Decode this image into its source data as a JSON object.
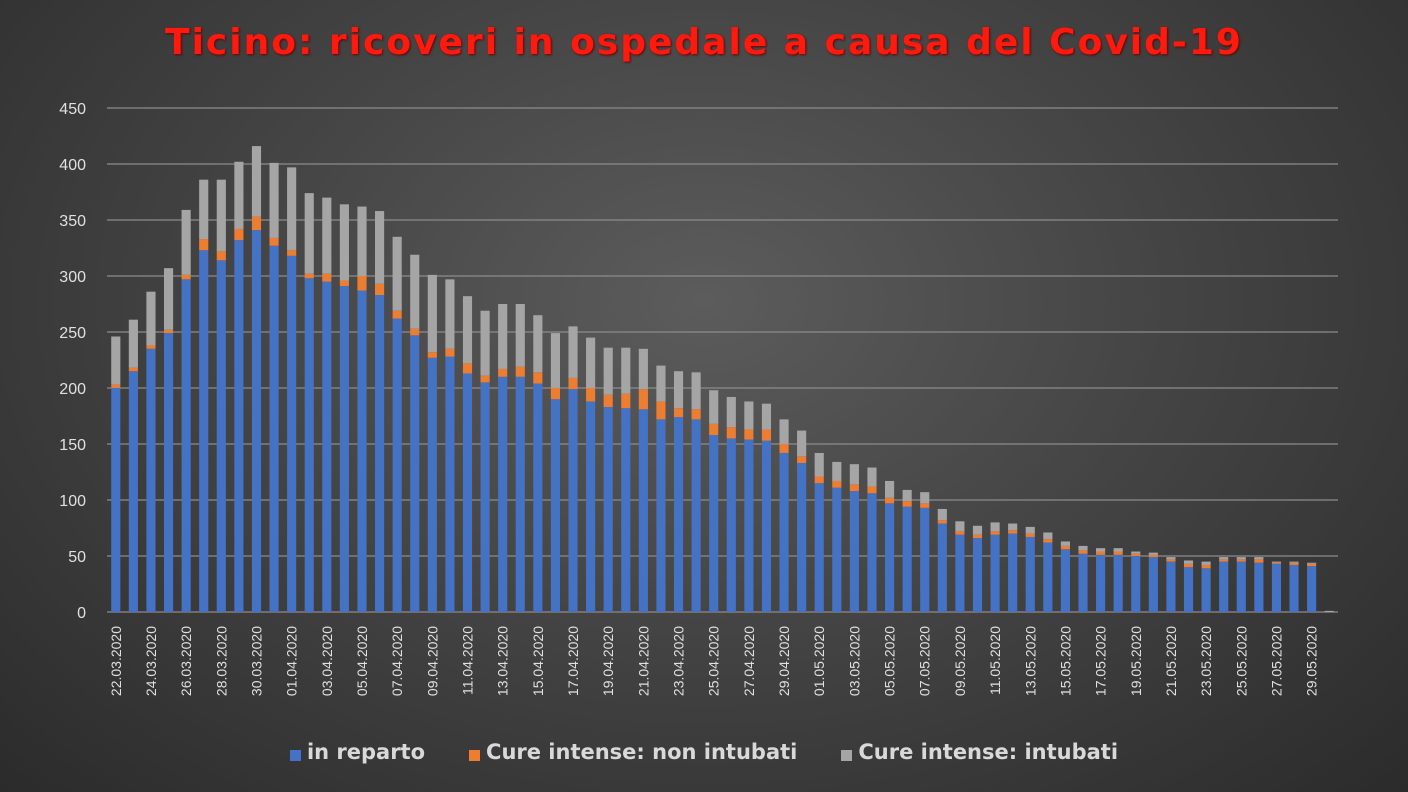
{
  "chart_data": {
    "type": "bar",
    "stacked": true,
    "title": "Ticino: ricoveri in ospedale a causa del Covid-19",
    "xlabel": "",
    "ylabel": "",
    "ylim": [
      0,
      450
    ],
    "yticks": [
      0,
      50,
      100,
      150,
      200,
      250,
      300,
      350,
      400,
      450
    ],
    "grid": true,
    "legend_position": "bottom",
    "categories": [
      "22.03.2020",
      "23.03.2020",
      "24.03.2020",
      "25.03.2020",
      "26.03.2020",
      "27.03.2020",
      "28.03.2020",
      "29.03.2020",
      "30.03.2020",
      "31.03.2020",
      "01.04.2020",
      "02.04.2020",
      "03.04.2020",
      "04.04.2020",
      "05.04.2020",
      "06.04.2020",
      "07.04.2020",
      "08.04.2020",
      "09.04.2020",
      "10.04.2020",
      "11.04.2020",
      "12.04.2020",
      "13.04.2020",
      "14.04.2020",
      "15.04.2020",
      "16.04.2020",
      "17.04.2020",
      "18.04.2020",
      "19.04.2020",
      "20.04.2020",
      "21.04.2020",
      "22.04.2020",
      "23.04.2020",
      "24.04.2020",
      "25.04.2020",
      "26.04.2020",
      "27.04.2020",
      "28.04.2020",
      "29.04.2020",
      "30.04.2020",
      "01.05.2020",
      "02.05.2020",
      "03.05.2020",
      "04.05.2020",
      "05.05.2020",
      "06.05.2020",
      "07.05.2020",
      "08.05.2020",
      "09.05.2020",
      "10.05.2020",
      "11.05.2020",
      "12.05.2020",
      "13.05.2020",
      "14.05.2020",
      "15.05.2020",
      "16.05.2020",
      "17.05.2020",
      "18.05.2020",
      "19.05.2020",
      "20.05.2020",
      "21.05.2020",
      "22.05.2020",
      "23.05.2020",
      "24.05.2020",
      "25.05.2020",
      "26.05.2020",
      "27.05.2020",
      "28.05.2020",
      "29.05.2020",
      "30.05.2020"
    ],
    "tick_labels": [
      "22.03.2020",
      "24.03.2020",
      "26.03.2020",
      "28.03.2020",
      "30.03.2020",
      "01.04.2020",
      "03.04.2020",
      "05.04.2020",
      "07.04.2020",
      "09.04.2020",
      "11.04.2020",
      "13.04.2020",
      "15.04.2020",
      "17.04.2020",
      "19.04.2020",
      "21.04.2020",
      "23.04.2020",
      "25.04.2020",
      "27.04.2020",
      "29.04.2020",
      "01.05.2020",
      "03.05.2020",
      "05.05.2020",
      "07.05.2020",
      "09.05.2020",
      "11.05.2020",
      "13.05.2020",
      "15.05.2020",
      "17.05.2020",
      "19.05.2020",
      "21.05.2020",
      "23.05.2020",
      "25.05.2020",
      "27.05.2020",
      "29.05.2020"
    ],
    "series": [
      {
        "name": "in reparto",
        "color": "#4472c4",
        "values": [
          200,
          215,
          235,
          249,
          297,
          323,
          314,
          332,
          341,
          327,
          318,
          298,
          295,
          291,
          287,
          283,
          262,
          247,
          227,
          228,
          213,
          205,
          210,
          210,
          204,
          190,
          199,
          188,
          183,
          182,
          181,
          172,
          174,
          172,
          158,
          155,
          154,
          153,
          142,
          133,
          115,
          111,
          108,
          106,
          97,
          94,
          93,
          79,
          69,
          66,
          69,
          70,
          67,
          62,
          56,
          52,
          51,
          51,
          50,
          49,
          45,
          40,
          39,
          45,
          45,
          44,
          43,
          42,
          41,
          0
        ]
      },
      {
        "name": "Cure intense: non intubati",
        "color": "#ed7d31",
        "values": [
          3,
          3,
          3,
          3,
          4,
          10,
          8,
          10,
          12,
          7,
          5,
          4,
          7,
          5,
          13,
          10,
          7,
          6,
          5,
          7,
          9,
          6,
          7,
          9,
          10,
          10,
          10,
          12,
          11,
          13,
          18,
          16,
          8,
          9,
          10,
          10,
          9,
          10,
          8,
          6,
          6,
          6,
          6,
          6,
          5,
          5,
          4,
          3,
          3,
          3,
          3,
          3,
          3,
          3,
          3,
          3,
          3,
          3,
          2,
          2,
          2,
          3,
          3,
          2,
          2,
          3,
          1,
          2,
          2,
          0
        ]
      },
      {
        "name": "Cure intense: intubati",
        "color": "#a5a5a5",
        "values": [
          43,
          43,
          48,
          55,
          58,
          53,
          64,
          60,
          63,
          67,
          74,
          72,
          68,
          68,
          62,
          65,
          66,
          66,
          69,
          62,
          60,
          58,
          58,
          56,
          51,
          49,
          46,
          45,
          42,
          41,
          36,
          32,
          33,
          33,
          30,
          27,
          25,
          23,
          22,
          23,
          21,
          17,
          18,
          17,
          15,
          10,
          10,
          10,
          9,
          8,
          8,
          6,
          6,
          6,
          4,
          4,
          3,
          3,
          2,
          2,
          2,
          3,
          3,
          2,
          2,
          2,
          1,
          1,
          1,
          1
        ]
      }
    ]
  }
}
